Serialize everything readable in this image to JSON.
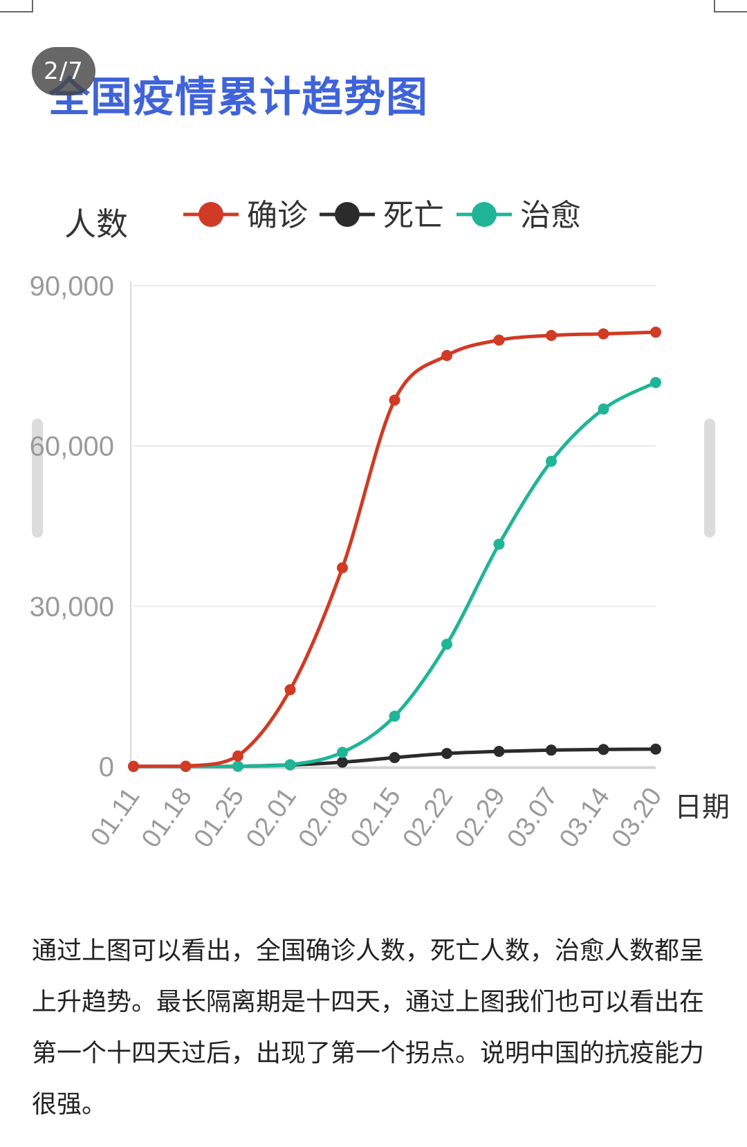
{
  "page_indicator": "2/7",
  "title": "全国疫情累计趋势图",
  "colors": {
    "title": "#3f63d8",
    "confirmed": "#d13a24",
    "deaths": "#2b2b2b",
    "cured": "#1fb596",
    "axis_text": "#9a9a9a",
    "grid": "#e8e8e8"
  },
  "chart_data": {
    "type": "line",
    "ylabel": "人数",
    "xlabel": "日期",
    "ylim": [
      0,
      90000
    ],
    "yticks": [
      0,
      30000,
      60000,
      90000
    ],
    "ytick_labels": [
      "0",
      "30,000",
      "60,000",
      "90,000"
    ],
    "categories": [
      "01.11",
      "01.18",
      "01.25",
      "02.01",
      "02.08",
      "02.15",
      "02.22",
      "02.29",
      "03.07",
      "03.14",
      "03.20"
    ],
    "legend_position": "top",
    "grid": true,
    "series": [
      {
        "name": "确诊",
        "color": "#d13a24",
        "values": [
          41,
          62,
          1975,
          14380,
          37198,
          68584,
          76936,
          79824,
          80695,
          80991,
          81300
        ]
      },
      {
        "name": "死亡",
        "color": "#2b2b2b",
        "values": [
          1,
          2,
          56,
          304,
          811,
          1666,
          2442,
          2835,
          3070,
          3189,
          3253
        ]
      },
      {
        "name": "治愈",
        "color": "#1fb596",
        "values": [
          0,
          0,
          49,
          328,
          2649,
          9419,
          22888,
          41625,
          57143,
          66911,
          71876
        ]
      }
    ]
  },
  "paragraph": "通过上图可以看出，全国确诊人数，死亡人数，治愈人数都呈上升趋势。最长隔离期是十四天，通过上图我们也可以看出在第一个十四天过后，出现了第一个拐点。说明中国的抗疫能力很强。"
}
